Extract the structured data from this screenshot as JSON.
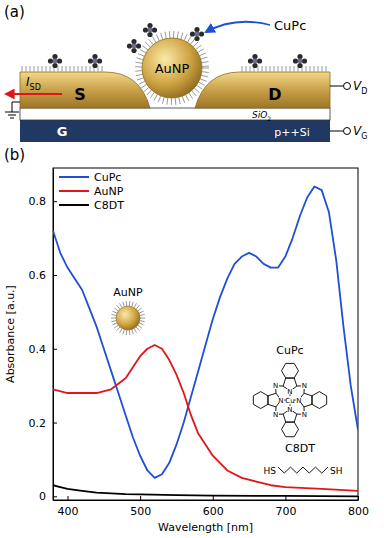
{
  "diagram": {
    "panel_label": "(a)",
    "labels": {
      "molecule": "CuPc",
      "particle": "AuNP",
      "source": "S",
      "drain": "D",
      "gate": "G",
      "substrate": "p++Si",
      "oxide": {
        "base": "SiO",
        "sub": "2"
      },
      "current": {
        "base": "I",
        "sub": "SD"
      },
      "drain_voltage": {
        "base": "V",
        "sub": "D"
      },
      "gate_voltage": {
        "base": "V",
        "sub": "G"
      }
    }
  },
  "chart_data": {
    "type": "line",
    "title": "(b)",
    "x_label": "Wavelength [nm]",
    "y_label": "Absorbance [a.u.]",
    "xlim": [
      380,
      800
    ],
    "ylim": [
      -0.01,
      0.89
    ],
    "xticks": [
      400,
      500,
      600,
      700,
      800
    ],
    "yticks": [
      0,
      0.2,
      0.4,
      0.6,
      0.8
    ],
    "grid": false,
    "legend": "upper left",
    "series": [
      {
        "name": "CuPc",
        "color": "#1f4fd6",
        "x": [
          380,
          390,
          400,
          410,
          420,
          430,
          440,
          450,
          460,
          470,
          480,
          490,
          500,
          510,
          520,
          530,
          540,
          550,
          560,
          570,
          580,
          590,
          600,
          610,
          620,
          630,
          640,
          650,
          660,
          670,
          680,
          690,
          700,
          710,
          720,
          730,
          740,
          750,
          760,
          770,
          780,
          790,
          800
        ],
        "values": [
          0.72,
          0.66,
          0.62,
          0.59,
          0.56,
          0.51,
          0.46,
          0.4,
          0.34,
          0.28,
          0.22,
          0.16,
          0.11,
          0.07,
          0.05,
          0.06,
          0.09,
          0.14,
          0.2,
          0.27,
          0.34,
          0.41,
          0.48,
          0.54,
          0.59,
          0.63,
          0.65,
          0.66,
          0.65,
          0.63,
          0.62,
          0.62,
          0.65,
          0.7,
          0.76,
          0.81,
          0.84,
          0.83,
          0.77,
          0.64,
          0.46,
          0.3,
          0.18
        ]
      },
      {
        "name": "AuNP",
        "color": "#e0161b",
        "x": [
          380,
          400,
          420,
          440,
          460,
          480,
          490,
          500,
          510,
          520,
          530,
          540,
          550,
          560,
          570,
          580,
          600,
          620,
          640,
          660,
          680,
          700,
          750,
          800
        ],
        "values": [
          0.29,
          0.28,
          0.28,
          0.28,
          0.29,
          0.32,
          0.35,
          0.38,
          0.4,
          0.41,
          0.4,
          0.37,
          0.33,
          0.28,
          0.22,
          0.17,
          0.11,
          0.07,
          0.05,
          0.04,
          0.03,
          0.025,
          0.02,
          0.015
        ]
      },
      {
        "name": "C8DT",
        "color": "#000000",
        "x": [
          380,
          390,
          400,
          420,
          440,
          460,
          480,
          500,
          550,
          600,
          700,
          800
        ],
        "values": [
          0.03,
          0.025,
          0.02,
          0.015,
          0.01,
          0.008,
          0.006,
          0.005,
          0.003,
          0.002,
          0.001,
          0
        ]
      }
    ],
    "annotations": {
      "particle": "AuNP",
      "molecule": "CuPc",
      "molecule_center": "Cu",
      "molecule_atom": "N",
      "linker": "C8DT",
      "linker_ends": [
        "HS",
        "SH"
      ]
    }
  }
}
